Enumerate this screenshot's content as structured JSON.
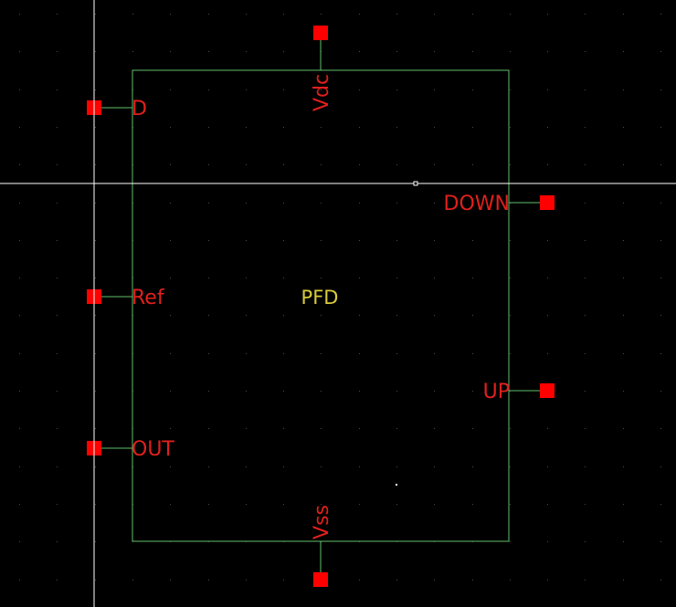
{
  "schematic": {
    "symbol_name": "PFD",
    "colors": {
      "background": "#000000",
      "grid_dot": "#4a4a4a",
      "symbol_outline": "#5fbf6a",
      "pin_square": "#ff0000",
      "pin_label": "#e0201c",
      "symbol_name": "#d8cc3a",
      "crosshair": "#ffffff"
    },
    "pins": {
      "left": [
        "D",
        "Ref",
        "OUT"
      ],
      "right": [
        "DOWN",
        "UP"
      ],
      "top": [
        "Vdc"
      ],
      "bottom": [
        "Vss"
      ]
    }
  }
}
